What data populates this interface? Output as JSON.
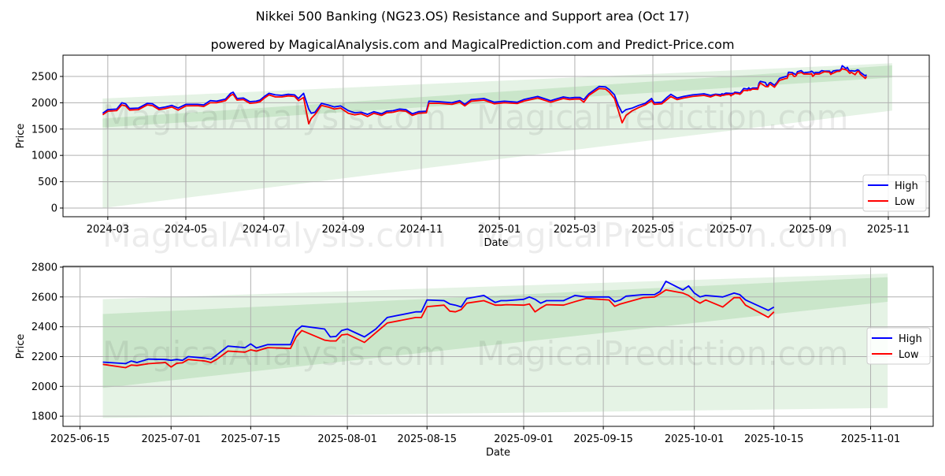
{
  "title": "Nikkei 500 Banking (NG23.OS) Resistance and Support area (Oct 17)",
  "subtitle": "powered by MagicalAnalysis.com and MagicalPrediction.com and Predict-Price.com",
  "watermarks": [
    "MagicalAnalysis.com",
    "MagicalPrediction.com"
  ],
  "colors": {
    "high": "#0000ff",
    "low": "#ff0000",
    "band": "#2ca02c",
    "grid": "#b0b0b0"
  },
  "chart_data": [
    {
      "type": "line",
      "xlabel": "Date",
      "ylabel": "Price",
      "xlim": [
        "2024-01-26",
        "2025-12-03"
      ],
      "ylim": [
        -165,
        2904
      ],
      "yticks": [
        0,
        500,
        1000,
        1500,
        2000,
        2500
      ],
      "xticks": [
        "2024-03-01",
        "2024-05-01",
        "2024-07-01",
        "2024-09-01",
        "2024-11-01",
        "2025-01-01",
        "2025-03-01",
        "2025-05-01",
        "2025-07-01",
        "2025-09-01",
        "2025-11-01"
      ],
      "xtick_labels": [
        "2024-03",
        "2024-05",
        "2024-07",
        "2024-09",
        "2024-11",
        "2025-01",
        "2025-03",
        "2025-05",
        "2025-07",
        "2025-09",
        "2025-11"
      ],
      "grid": true,
      "legend": {
        "position": "lower-right",
        "entries": [
          "High",
          "Low"
        ]
      },
      "bands": [
        {
          "name": "outer",
          "start": "2024-02-26",
          "end": "2025-11-04",
          "start_range": [
            0,
            2080
          ],
          "end_range": [
            1850,
            2750
          ]
        },
        {
          "name": "inner",
          "start": "2024-02-26",
          "end": "2025-11-04",
          "start_range": [
            1530,
            1700
          ],
          "end_range": [
            2480,
            2710
          ]
        }
      ],
      "series_columns": [
        "date",
        "high",
        "low"
      ],
      "continues_with_chart": 1,
      "points": [
        [
          "2024-02-26",
          1800,
          1770
        ],
        [
          "2024-03-01",
          1870,
          1840
        ],
        [
          "2024-03-08",
          1880,
          1850
        ],
        [
          "2024-03-12",
          2000,
          1960
        ],
        [
          "2024-03-15",
          1980,
          1940
        ],
        [
          "2024-03-18",
          1890,
          1860
        ],
        [
          "2024-03-25",
          1900,
          1870
        ],
        [
          "2024-04-01",
          1990,
          1960
        ],
        [
          "2024-04-05",
          1980,
          1945
        ],
        [
          "2024-04-10",
          1900,
          1870
        ],
        [
          "2024-04-15",
          1920,
          1890
        ],
        [
          "2024-04-20",
          1950,
          1920
        ],
        [
          "2024-04-25",
          1900,
          1860
        ],
        [
          "2024-05-01",
          1970,
          1940
        ],
        [
          "2024-05-10",
          1970,
          1945
        ],
        [
          "2024-05-15",
          1960,
          1930
        ],
        [
          "2024-05-20",
          2040,
          2000
        ],
        [
          "2024-05-25",
          2030,
          2000
        ],
        [
          "2024-06-01",
          2070,
          2040
        ],
        [
          "2024-06-05",
          2180,
          2140
        ],
        [
          "2024-06-07",
          2200,
          2160
        ],
        [
          "2024-06-10",
          2080,
          2050
        ],
        [
          "2024-06-15",
          2090,
          2060
        ],
        [
          "2024-06-20",
          2020,
          1990
        ],
        [
          "2024-06-25",
          2030,
          2000
        ],
        [
          "2024-06-28",
          2050,
          2020
        ],
        [
          "2024-07-02",
          2130,
          2100
        ],
        [
          "2024-07-05",
          2180,
          2150
        ],
        [
          "2024-07-10",
          2150,
          2110
        ],
        [
          "2024-07-15",
          2140,
          2110
        ],
        [
          "2024-07-20",
          2160,
          2130
        ],
        [
          "2024-07-25",
          2150,
          2120
        ],
        [
          "2024-07-28",
          2080,
          2040
        ],
        [
          "2024-08-01",
          2180,
          2100
        ],
        [
          "2024-08-05",
          1880,
          1600
        ],
        [
          "2024-08-07",
          1800,
          1700
        ],
        [
          "2024-08-10",
          1820,
          1780
        ],
        [
          "2024-08-15",
          1990,
          1950
        ],
        [
          "2024-08-20",
          1960,
          1920
        ],
        [
          "2024-08-25",
          1920,
          1880
        ],
        [
          "2024-08-30",
          1940,
          1900
        ],
        [
          "2024-09-05",
          1850,
          1800
        ],
        [
          "2024-09-10",
          1810,
          1770
        ],
        [
          "2024-09-15",
          1820,
          1790
        ],
        [
          "2024-09-20",
          1780,
          1740
        ],
        [
          "2024-09-25",
          1830,
          1800
        ],
        [
          "2024-10-01",
          1790,
          1760
        ],
        [
          "2024-10-05",
          1840,
          1810
        ],
        [
          "2024-10-10",
          1850,
          1820
        ],
        [
          "2024-10-15",
          1880,
          1850
        ],
        [
          "2024-10-20",
          1870,
          1840
        ],
        [
          "2024-10-25",
          1790,
          1760
        ],
        [
          "2024-10-30",
          1830,
          1800
        ],
        [
          "2024-11-05",
          1840,
          1810
        ],
        [
          "2024-11-07",
          2030,
          1990
        ],
        [
          "2024-11-15",
          2020,
          1990
        ],
        [
          "2024-11-25",
          2000,
          1970
        ],
        [
          "2024-12-01",
          2040,
          2010
        ],
        [
          "2024-12-05",
          1970,
          1940
        ],
        [
          "2024-12-10",
          2060,
          2030
        ],
        [
          "2024-12-20",
          2080,
          2050
        ],
        [
          "2024-12-28",
          2010,
          1980
        ],
        [
          "2025-01-05",
          2030,
          2000
        ],
        [
          "2025-01-15",
          2010,
          1985
        ],
        [
          "2025-01-20",
          2060,
          2030
        ],
        [
          "2025-01-31",
          2120,
          2090
        ],
        [
          "2025-02-10",
          2040,
          2010
        ],
        [
          "2025-02-20",
          2110,
          2080
        ],
        [
          "2025-02-25",
          2090,
          2060
        ],
        [
          "2025-03-01",
          2100,
          2070
        ],
        [
          "2025-03-05",
          2100,
          2070
        ],
        [
          "2025-03-08",
          2060,
          2010
        ],
        [
          "2025-03-12",
          2170,
          2140
        ],
        [
          "2025-03-20",
          2310,
          2270
        ],
        [
          "2025-03-25",
          2300,
          2260
        ],
        [
          "2025-03-28",
          2250,
          2200
        ],
        [
          "2025-04-01",
          2150,
          2080
        ],
        [
          "2025-04-04",
          1950,
          1850
        ],
        [
          "2025-04-07",
          1810,
          1620
        ],
        [
          "2025-04-10",
          1870,
          1760
        ],
        [
          "2025-04-15",
          1900,
          1850
        ],
        [
          "2025-04-20",
          1950,
          1910
        ],
        [
          "2025-04-25",
          1990,
          1960
        ],
        [
          "2025-04-30",
          2080,
          2040
        ],
        [
          "2025-05-02",
          2000,
          1970
        ],
        [
          "2025-05-08",
          2010,
          1980
        ],
        [
          "2025-05-12",
          2100,
          2060
        ],
        [
          "2025-05-15",
          2160,
          2120
        ],
        [
          "2025-05-20",
          2090,
          2060
        ],
        [
          "2025-05-25",
          2120,
          2090
        ],
        [
          "2025-06-01",
          2150,
          2120
        ],
        [
          "2025-06-10",
          2170,
          2140
        ],
        [
          "2025-06-15",
          2140,
          2110
        ]
      ]
    },
    {
      "type": "line",
      "xlabel": "Date",
      "ylabel": "Price",
      "xlim": [
        "2025-06-12",
        "2025-11-12"
      ],
      "ylim": [
        1732,
        2805
      ],
      "yticks": [
        1800,
        2000,
        2200,
        2400,
        2600,
        2800
      ],
      "xticks": [
        "2025-06-15",
        "2025-07-01",
        "2025-07-15",
        "2025-08-01",
        "2025-08-15",
        "2025-09-01",
        "2025-09-15",
        "2025-10-01",
        "2025-10-15",
        "2025-11-01"
      ],
      "xtick_labels": [
        "2025-06-15",
        "2025-07-01",
        "2025-07-15",
        "2025-08-01",
        "2025-08-15",
        "2025-09-01",
        "2025-09-15",
        "2025-10-01",
        "2025-10-15",
        "2025-11-01"
      ],
      "grid": true,
      "legend": {
        "position": "center-right",
        "entries": [
          "High",
          "Low"
        ]
      },
      "bands": [
        {
          "name": "outer",
          "start": "2025-06-19",
          "end": "2025-11-04",
          "start_range": [
            1788,
            2585
          ],
          "end_range": [
            1855,
            2757
          ]
        },
        {
          "name": "inner",
          "start": "2025-06-19",
          "end": "2025-11-04",
          "start_range": [
            1990,
            2485
          ],
          "end_range": [
            2568,
            2732
          ]
        }
      ],
      "series_columns": [
        "date",
        "high",
        "low"
      ],
      "points": [
        [
          "2025-06-19",
          2163,
          2148
        ],
        [
          "2025-06-23",
          2153,
          2126
        ],
        [
          "2025-06-24",
          2170,
          2143
        ],
        [
          "2025-06-25",
          2160,
          2140
        ],
        [
          "2025-06-27",
          2183,
          2152
        ],
        [
          "2025-06-30",
          2180,
          2160
        ],
        [
          "2025-07-01",
          2175,
          2130
        ],
        [
          "2025-07-02",
          2180,
          2155
        ],
        [
          "2025-07-03",
          2175,
          2158
        ],
        [
          "2025-07-04",
          2200,
          2180
        ],
        [
          "2025-07-07",
          2190,
          2170
        ],
        [
          "2025-07-08",
          2182,
          2160
        ],
        [
          "2025-07-09",
          2210,
          2180
        ],
        [
          "2025-07-11",
          2270,
          2237
        ],
        [
          "2025-07-14",
          2260,
          2230
        ],
        [
          "2025-07-15",
          2285,
          2245
        ],
        [
          "2025-07-16",
          2258,
          2237
        ],
        [
          "2025-07-18",
          2280,
          2260
        ],
        [
          "2025-07-22",
          2280,
          2255
        ],
        [
          "2025-07-23",
          2374,
          2332
        ],
        [
          "2025-07-24",
          2405,
          2375
        ],
        [
          "2025-07-28",
          2385,
          2310
        ],
        [
          "2025-07-29",
          2332,
          2305
        ],
        [
          "2025-07-30",
          2335,
          2305
        ],
        [
          "2025-07-31",
          2375,
          2345
        ],
        [
          "2025-08-01",
          2385,
          2350
        ],
        [
          "2025-08-04",
          2332,
          2295
        ],
        [
          "2025-08-06",
          2385,
          2360
        ],
        [
          "2025-08-08",
          2462,
          2425
        ],
        [
          "2025-08-13",
          2500,
          2462
        ],
        [
          "2025-08-14",
          2500,
          2462
        ],
        [
          "2025-08-15",
          2580,
          2535
        ],
        [
          "2025-08-18",
          2575,
          2545
        ],
        [
          "2025-08-19",
          2553,
          2505
        ],
        [
          "2025-08-20",
          2545,
          2500
        ],
        [
          "2025-08-21",
          2533,
          2515
        ],
        [
          "2025-08-22",
          2590,
          2558
        ],
        [
          "2025-08-25",
          2610,
          2575
        ],
        [
          "2025-08-27",
          2563,
          2545
        ],
        [
          "2025-08-28",
          2575,
          2545
        ],
        [
          "2025-08-29",
          2575,
          2548
        ],
        [
          "2025-09-01",
          2584,
          2545
        ],
        [
          "2025-09-02",
          2600,
          2553
        ],
        [
          "2025-09-03",
          2584,
          2500
        ],
        [
          "2025-09-04",
          2558,
          2526
        ],
        [
          "2025-09-05",
          2575,
          2548
        ],
        [
          "2025-09-08",
          2575,
          2545
        ],
        [
          "2025-09-10",
          2610,
          2568
        ],
        [
          "2025-09-12",
          2600,
          2590
        ],
        [
          "2025-09-16",
          2600,
          2580
        ],
        [
          "2025-09-17",
          2568,
          2537
        ],
        [
          "2025-09-18",
          2580,
          2553
        ],
        [
          "2025-09-19",
          2605,
          2563
        ],
        [
          "2025-09-22",
          2615,
          2595
        ],
        [
          "2025-09-24",
          2615,
          2600
        ],
        [
          "2025-09-25",
          2637,
          2621
        ],
        [
          "2025-09-26",
          2705,
          2647
        ],
        [
          "2025-09-29",
          2647,
          2626
        ],
        [
          "2025-09-30",
          2674,
          2610
        ],
        [
          "2025-10-01",
          2626,
          2580
        ],
        [
          "2025-10-02",
          2600,
          2558
        ],
        [
          "2025-10-03",
          2610,
          2580
        ],
        [
          "2025-10-06",
          2600,
          2532
        ],
        [
          "2025-10-08",
          2626,
          2595
        ],
        [
          "2025-10-09",
          2615,
          2595
        ],
        [
          "2025-10-10",
          2580,
          2545
        ],
        [
          "2025-10-14",
          2510,
          2463
        ],
        [
          "2025-10-15",
          2532,
          2500
        ]
      ]
    }
  ]
}
